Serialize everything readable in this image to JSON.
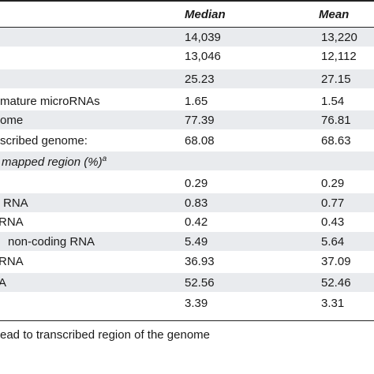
{
  "table": {
    "columns": {
      "median": "Median",
      "mean": "Mean"
    },
    "rows": [
      {
        "label": "",
        "median": "14,039",
        "mean": "13,220"
      },
      {
        "label": "",
        "median": "13,046",
        "mean": "12,112"
      },
      {
        "label": "",
        "median": "25.23",
        "mean": "27.15"
      },
      {
        "label": "mature microRNAs",
        "median": "1.65",
        "mean": "1.54"
      },
      {
        "label": "ome",
        "median": "77.39",
        "mean": "76.81"
      },
      {
        "label": "scribed genome:",
        "median": "68.08",
        "mean": "68.63"
      },
      {
        "label": "mapped region (%)",
        "label_sup": "a",
        "median": "",
        "mean": ""
      },
      {
        "label": "",
        "median": "0.29",
        "mean": "0.29"
      },
      {
        "label": "RNA",
        "median": "0.83",
        "mean": "0.77"
      },
      {
        "label": "RNA",
        "median": "0.42",
        "mean": "0.43"
      },
      {
        "label": "non-coding RNA",
        "median": "5.49",
        "mean": "5.64"
      },
      {
        "label": "RNA",
        "median": "36.93",
        "mean": "37.09"
      },
      {
        "label": "A",
        "median": "52.56",
        "mean": "52.46"
      },
      {
        "label": "",
        "median": "3.39",
        "mean": "3.31"
      }
    ],
    "footnote": "ead to transcribed region of the genome"
  }
}
